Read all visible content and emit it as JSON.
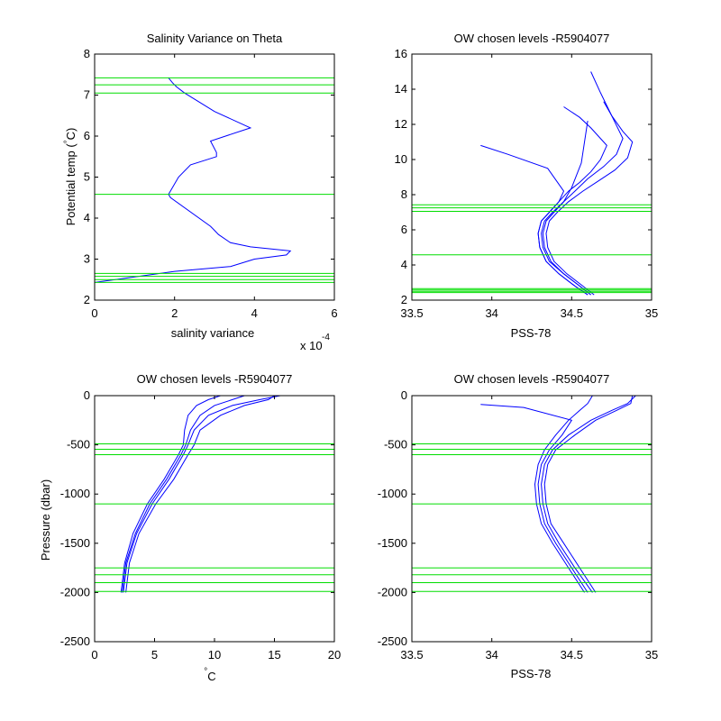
{
  "colors": {
    "data": "#0000ff",
    "levels": "#00dd00",
    "axes": "#000000",
    "background": "#ffffff"
  },
  "chart_data": [
    {
      "id": "p1",
      "type": "line",
      "title": "Salinity Variance on Theta",
      "xlabel": "salinity variance",
      "ylabel": "Potential temp (°C)",
      "ylabel_parts": {
        "base": "Potential temp (",
        "deg": "°",
        "unit": "C)"
      },
      "x_exponent_label": "x 10",
      "x_exponent": "-4",
      "xlim": [
        0,
        6
      ],
      "ylim": [
        2,
        8
      ],
      "y_reversed": false,
      "xticks": [
        0,
        2,
        4,
        6
      ],
      "xtick_labels": [
        "0",
        "2",
        "4",
        "6"
      ],
      "yticks": [
        2,
        3,
        4,
        5,
        6,
        7,
        8
      ],
      "ytick_labels": [
        "2",
        "3",
        "4",
        "5",
        "6",
        "7",
        "8"
      ],
      "levels": [
        7.42,
        7.25,
        7.05,
        4.58,
        2.65,
        2.58,
        2.5,
        2.43
      ],
      "series": [
        {
          "x": [
            1.85,
            1.95,
            2.05,
            2.25,
            3.0,
            3.9,
            2.9,
            3.05,
            3.05,
            2.4,
            2.1,
            1.85,
            1.9,
            2.9,
            3.0,
            3.1,
            3.4,
            3.9,
            4.9,
            4.8,
            4.0,
            3.9,
            3.4,
            2.0,
            0.0
          ],
          "y": [
            7.42,
            7.3,
            7.2,
            7.05,
            6.6,
            6.2,
            5.88,
            5.6,
            5.5,
            5.3,
            5.0,
            4.58,
            4.5,
            3.8,
            3.7,
            3.6,
            3.4,
            3.3,
            3.2,
            3.1,
            3.0,
            2.97,
            2.82,
            2.7,
            2.43
          ]
        }
      ]
    },
    {
      "id": "p2",
      "type": "line",
      "title": "OW chosen levels -R5904077",
      "xlabel": "PSS-78",
      "xlim": [
        33.5,
        35
      ],
      "ylim": [
        2,
        16
      ],
      "y_reversed": false,
      "xticks": [
        33.5,
        34,
        34.5,
        35
      ],
      "xtick_labels": [
        "33.5",
        "34",
        "34.5",
        "35"
      ],
      "yticks": [
        2,
        4,
        6,
        8,
        10,
        12,
        14,
        16
      ],
      "ytick_labels": [
        "2",
        "4",
        "6",
        "8",
        "10",
        "12",
        "14",
        "16"
      ],
      "levels": [
        7.42,
        7.25,
        7.05,
        4.58,
        2.65,
        2.58,
        2.5,
        2.43
      ],
      "series": [
        {
          "x": [
            34.62,
            34.55,
            34.45,
            34.36,
            34.32,
            34.31,
            34.33,
            34.38,
            34.45,
            34.52,
            34.6,
            34.7,
            34.78,
            34.82,
            34.75,
            34.68,
            34.62
          ],
          "y": [
            2.3,
            2.8,
            3.5,
            4.2,
            5.0,
            5.8,
            6.5,
            7.0,
            7.6,
            8.2,
            8.9,
            9.6,
            10.3,
            11.2,
            12.5,
            13.8,
            15.0
          ]
        },
        {
          "x": [
            34.6,
            34.52,
            34.42,
            34.34,
            34.3,
            34.29,
            34.31,
            34.36,
            34.42,
            34.48,
            34.55,
            34.62,
            34.68,
            34.72,
            34.62,
            34.55,
            34.45
          ],
          "y": [
            2.3,
            2.8,
            3.5,
            4.2,
            5.0,
            5.8,
            6.5,
            7.0,
            7.6,
            8.2,
            8.7,
            9.3,
            10.0,
            10.8,
            11.8,
            12.4,
            13.0
          ]
        },
        {
          "x": [
            34.64,
            34.57,
            34.47,
            34.39,
            34.35,
            34.34,
            34.36,
            34.41,
            34.48,
            34.57,
            34.67,
            34.77,
            34.85,
            34.88,
            34.82,
            34.75,
            34.7
          ],
          "y": [
            2.3,
            2.8,
            3.5,
            4.2,
            5.0,
            5.8,
            6.5,
            7.0,
            7.6,
            8.2,
            8.8,
            9.4,
            10.1,
            11.0,
            11.6,
            12.5,
            13.3
          ]
        },
        {
          "x": [
            34.6,
            34.52,
            34.42,
            34.34,
            34.3,
            34.29,
            34.31,
            34.36,
            34.42,
            34.45,
            34.35,
            34.1,
            33.93
          ],
          "y": [
            2.3,
            2.8,
            3.5,
            4.2,
            5.0,
            5.8,
            6.5,
            7.0,
            7.6,
            8.2,
            9.5,
            10.3,
            10.8
          ]
        },
        {
          "x": [
            34.62,
            34.55,
            34.45,
            34.37,
            34.33,
            34.32,
            34.34,
            34.39,
            34.45,
            34.5,
            34.56,
            34.6
          ],
          "y": [
            2.3,
            2.8,
            3.5,
            4.2,
            5.0,
            5.8,
            6.5,
            7.0,
            7.6,
            8.4,
            9.8,
            12.2
          ]
        }
      ]
    },
    {
      "id": "p3",
      "type": "line",
      "title": "OW chosen levels -R5904077",
      "ylabel": "Pressure (dbar)",
      "xlabel_parts": {
        "deg": "°",
        "unit": "C"
      },
      "xlim": [
        0,
        20
      ],
      "ylim": [
        -2500,
        0
      ],
      "y_reversed": false,
      "xticks": [
        0,
        5,
        10,
        15,
        20
      ],
      "xtick_labels": [
        "0",
        "5",
        "10",
        "15",
        "20"
      ],
      "yticks": [
        -2500,
        -2000,
        -1500,
        -1000,
        -500,
        0
      ],
      "ytick_labels": [
        "-2500",
        "-2000",
        "-1500",
        "-1000",
        "-500",
        "0"
      ],
      "levels": [
        -490,
        -545,
        -600,
        -1100,
        -1750,
        -1820,
        -1900,
        -1990
      ],
      "series": [
        {
          "x": [
            2.4,
            2.7,
            3.5,
            4.8,
            6.2,
            7.4,
            7.8,
            8.3,
            9.5,
            11.5,
            13.8,
            15.5
          ],
          "y": [
            -2000,
            -1700,
            -1400,
            -1100,
            -850,
            -600,
            -500,
            -350,
            -200,
            -100,
            -40,
            0
          ]
        },
        {
          "x": [
            2.2,
            2.5,
            3.2,
            4.4,
            5.8,
            7.0,
            7.4,
            7.5,
            7.8,
            8.5,
            9.5,
            10.5
          ],
          "y": [
            -2000,
            -1700,
            -1400,
            -1100,
            -850,
            -600,
            -500,
            -350,
            -200,
            -100,
            -40,
            0
          ]
        },
        {
          "x": [
            2.6,
            2.9,
            3.7,
            5.1,
            6.6,
            7.8,
            8.3,
            8.8,
            10.5,
            12.5,
            14.5,
            15.0
          ],
          "y": [
            -2000,
            -1700,
            -1400,
            -1100,
            -850,
            -600,
            -500,
            -350,
            -200,
            -100,
            -40,
            0
          ]
        },
        {
          "x": [
            2.3,
            2.6,
            3.4,
            4.6,
            6.0,
            7.2,
            7.6,
            8.0,
            8.8,
            10.0,
            11.5,
            12.5
          ],
          "y": [
            -2000,
            -1700,
            -1400,
            -1100,
            -850,
            -600,
            -500,
            -350,
            -200,
            -100,
            -40,
            0
          ]
        }
      ]
    },
    {
      "id": "p4",
      "type": "line",
      "title": "OW chosen levels -R5904077",
      "xlabel": "PSS-78",
      "xlim": [
        33.5,
        35
      ],
      "ylim": [
        -2500,
        0
      ],
      "y_reversed": false,
      "xticks": [
        33.5,
        34,
        34.5,
        35
      ],
      "xtick_labels": [
        "33.5",
        "34",
        "34.5",
        "35"
      ],
      "yticks": [
        -2500,
        -2000,
        -1500,
        -1000,
        -500,
        0
      ],
      "ytick_labels": [
        "-2500",
        "-2000",
        "-1500",
        "-1000",
        "-500",
        "0"
      ],
      "levels": [
        -490,
        -545,
        -600,
        -1100,
        -1750,
        -1820,
        -1900,
        -1990
      ],
      "series": [
        {
          "x": [
            34.63,
            34.52,
            34.42,
            34.35,
            34.32,
            34.31,
            34.33,
            34.38,
            34.48,
            34.62,
            34.75,
            34.85,
            34.9
          ],
          "y": [
            -2000,
            -1750,
            -1500,
            -1300,
            -1100,
            -900,
            -700,
            -550,
            -400,
            -250,
            -150,
            -80,
            0
          ]
        },
        {
          "x": [
            34.58,
            34.48,
            34.38,
            34.31,
            34.28,
            34.27,
            34.29,
            34.33,
            34.4,
            34.48,
            34.55,
            34.6,
            34.63
          ],
          "y": [
            -2000,
            -1750,
            -1500,
            -1300,
            -1100,
            -900,
            -700,
            -550,
            -400,
            -250,
            -150,
            -80,
            0
          ]
        },
        {
          "x": [
            34.65,
            34.55,
            34.45,
            34.37,
            34.34,
            34.33,
            34.35,
            34.4,
            34.52,
            34.65,
            34.78,
            34.87,
            34.88
          ],
          "y": [
            -2000,
            -1750,
            -1500,
            -1300,
            -1100,
            -900,
            -700,
            -550,
            -400,
            -250,
            -150,
            -80,
            0
          ]
        },
        {
          "x": [
            34.6,
            34.5,
            34.4,
            34.33,
            34.3,
            34.29,
            34.31,
            34.36,
            34.44,
            34.5,
            34.2,
            33.93
          ],
          "y": [
            -2000,
            -1750,
            -1500,
            -1300,
            -1100,
            -900,
            -700,
            -550,
            -400,
            -250,
            -120,
            -90
          ]
        }
      ]
    }
  ]
}
